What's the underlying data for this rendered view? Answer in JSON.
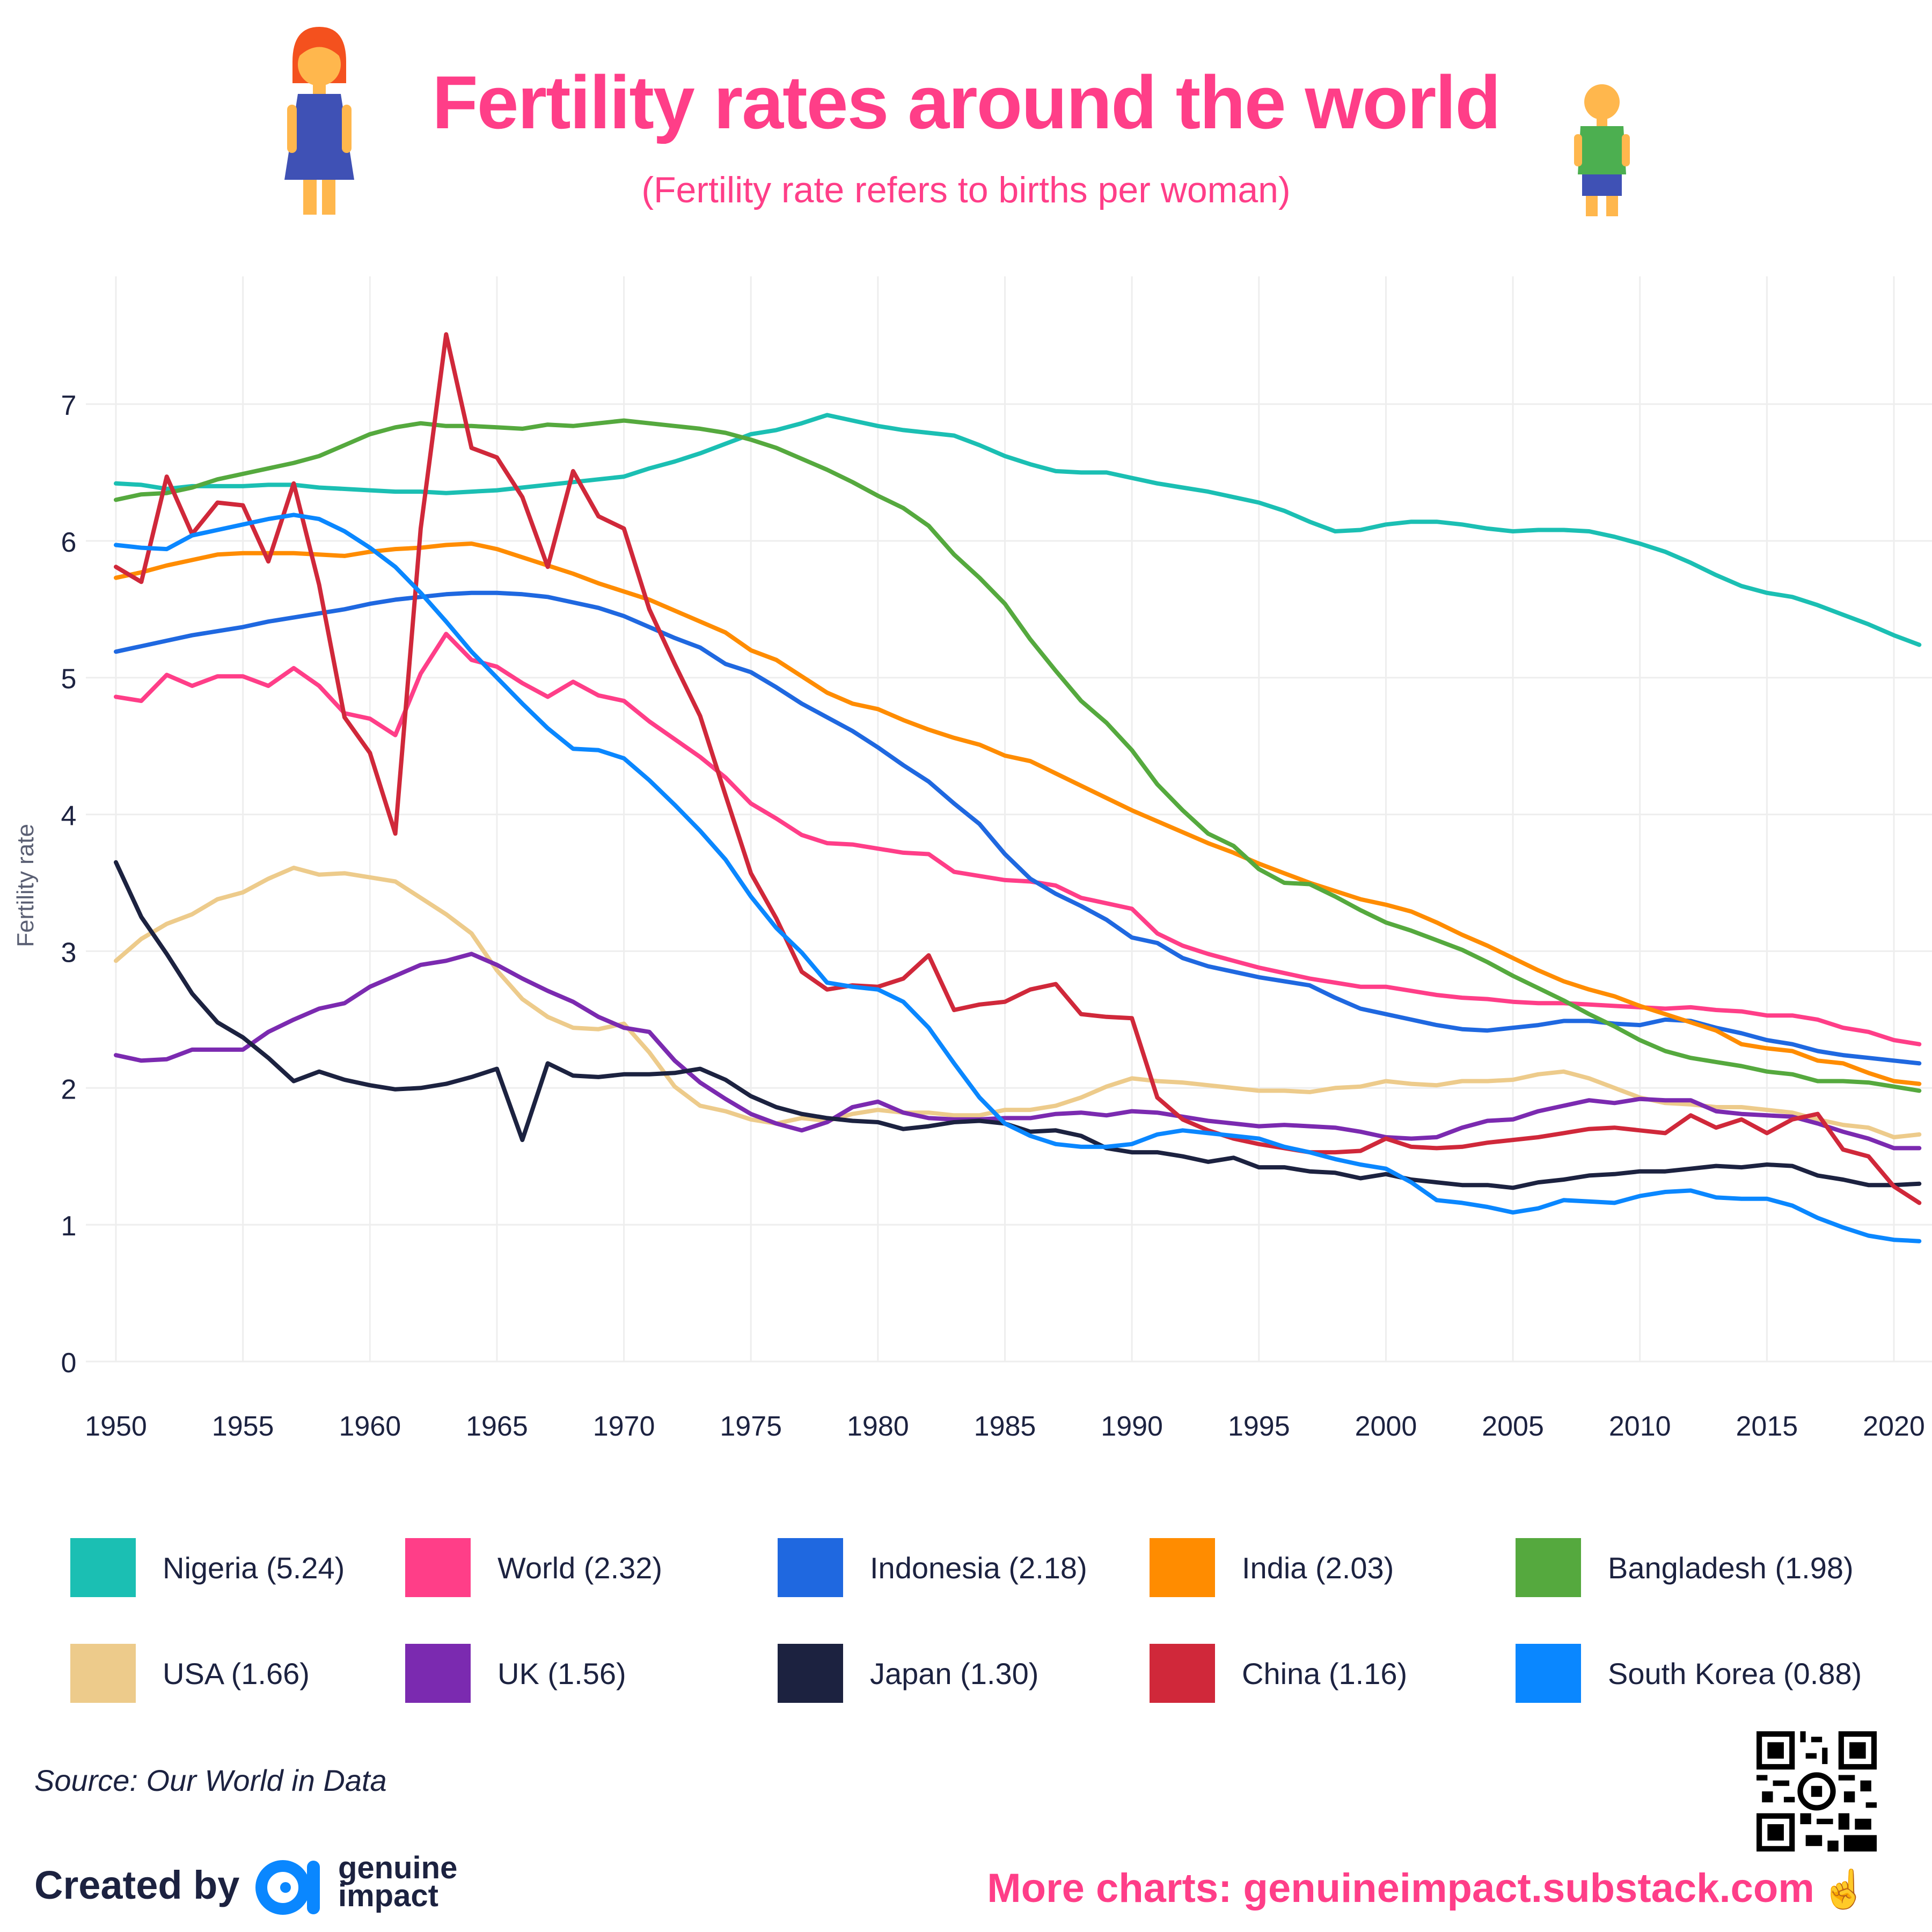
{
  "header": {
    "title": "Fertility rates around the world",
    "subtitle": "(Fertility rate refers to births per woman)",
    "left_icon": "woman-emoji-icon",
    "right_icon": "boy-emoji-icon"
  },
  "chart_data": {
    "type": "line",
    "title": "Fertility rates around the world",
    "subtitle": "(Fertility rate refers to births per woman)",
    "xlabel": "",
    "ylabel": "Fertility rate",
    "x_start": 1950,
    "x_end": 2021,
    "xlim": [
      1950,
      2021
    ],
    "ylim": [
      0,
      7.5
    ],
    "x_ticks": [
      "1950",
      "1955",
      "1960",
      "1965",
      "1970",
      "1975",
      "1980",
      "1985",
      "1990",
      "1995",
      "2000",
      "2005",
      "2010",
      "2015",
      "2020"
    ],
    "y_ticks": [
      "0",
      "1",
      "2",
      "3",
      "4",
      "5",
      "6",
      "7"
    ],
    "grid": true,
    "legend_placement": "bottom",
    "series": [
      {
        "name": "Nigeria",
        "legend": "Nigeria (5.24)",
        "color": "#1BBFB3",
        "values": [
          6.42,
          6.41,
          6.38,
          6.4,
          6.4,
          6.4,
          6.41,
          6.41,
          6.39,
          6.38,
          6.37,
          6.36,
          6.36,
          6.35,
          6.36,
          6.37,
          6.39,
          6.41,
          6.43,
          6.45,
          6.47,
          6.53,
          6.58,
          6.64,
          6.71,
          6.78,
          6.81,
          6.86,
          6.92,
          6.88,
          6.84,
          6.81,
          6.79,
          6.77,
          6.7,
          6.62,
          6.56,
          6.51,
          6.5,
          6.5,
          6.46,
          6.42,
          6.39,
          6.36,
          6.32,
          6.28,
          6.22,
          6.14,
          6.07,
          6.08,
          6.12,
          6.14,
          6.14,
          6.12,
          6.09,
          6.07,
          6.08,
          6.08,
          6.07,
          6.03,
          5.98,
          5.92,
          5.84,
          5.75,
          5.67,
          5.62,
          5.59,
          5.53,
          5.46,
          5.39,
          5.31,
          5.24
        ]
      },
      {
        "name": "World",
        "legend": "World (2.32)",
        "color": "#FF3E88",
        "values": [
          4.86,
          4.83,
          5.02,
          4.94,
          5.01,
          5.01,
          4.94,
          5.07,
          4.94,
          4.74,
          4.7,
          4.58,
          5.03,
          5.32,
          5.13,
          5.08,
          4.96,
          4.86,
          4.97,
          4.87,
          4.83,
          4.68,
          4.55,
          4.42,
          4.27,
          4.08,
          3.97,
          3.85,
          3.79,
          3.78,
          3.75,
          3.72,
          3.71,
          3.58,
          3.55,
          3.52,
          3.51,
          3.48,
          3.39,
          3.35,
          3.31,
          3.13,
          3.04,
          2.98,
          2.93,
          2.88,
          2.84,
          2.8,
          2.77,
          2.74,
          2.74,
          2.71,
          2.68,
          2.66,
          2.65,
          2.63,
          2.62,
          2.62,
          2.61,
          2.6,
          2.59,
          2.58,
          2.59,
          2.57,
          2.56,
          2.53,
          2.53,
          2.5,
          2.44,
          2.41,
          2.35,
          2.32
        ]
      },
      {
        "name": "Indonesia",
        "legend": "Indonesia (2.18)",
        "color": "#1F68E0",
        "values": [
          5.19,
          5.23,
          5.27,
          5.31,
          5.34,
          5.37,
          5.41,
          5.44,
          5.47,
          5.5,
          5.54,
          5.57,
          5.59,
          5.61,
          5.62,
          5.62,
          5.61,
          5.59,
          5.55,
          5.51,
          5.45,
          5.37,
          5.29,
          5.22,
          5.1,
          5.04,
          4.93,
          4.81,
          4.71,
          4.61,
          4.49,
          4.36,
          4.24,
          4.08,
          3.93,
          3.71,
          3.53,
          3.42,
          3.33,
          3.23,
          3.1,
          3.06,
          2.95,
          2.89,
          2.85,
          2.81,
          2.78,
          2.75,
          2.66,
          2.58,
          2.54,
          2.5,
          2.46,
          2.43,
          2.42,
          2.44,
          2.46,
          2.49,
          2.49,
          2.47,
          2.46,
          2.5,
          2.49,
          2.44,
          2.4,
          2.35,
          2.32,
          2.27,
          2.24,
          2.22,
          2.2,
          2.18
        ]
      },
      {
        "name": "India",
        "legend": "India (2.03)",
        "color": "#FF8C00",
        "values": [
          5.73,
          5.77,
          5.82,
          5.86,
          5.9,
          5.91,
          5.91,
          5.91,
          5.9,
          5.89,
          5.92,
          5.94,
          5.95,
          5.97,
          5.98,
          5.94,
          5.88,
          5.82,
          5.76,
          5.69,
          5.63,
          5.57,
          5.49,
          5.41,
          5.33,
          5.2,
          5.13,
          5.01,
          4.89,
          4.81,
          4.77,
          4.69,
          4.62,
          4.56,
          4.51,
          4.43,
          4.39,
          4.3,
          4.21,
          4.12,
          4.03,
          3.95,
          3.87,
          3.79,
          3.72,
          3.64,
          3.57,
          3.5,
          3.44,
          3.38,
          3.34,
          3.29,
          3.21,
          3.12,
          3.04,
          2.95,
          2.86,
          2.78,
          2.72,
          2.67,
          2.6,
          2.54,
          2.48,
          2.42,
          2.32,
          2.29,
          2.27,
          2.2,
          2.18,
          2.11,
          2.05,
          2.03
        ]
      },
      {
        "name": "Bangladesh",
        "legend": "Bangladesh (1.98)",
        "color": "#55A93E",
        "values": [
          6.3,
          6.34,
          6.35,
          6.39,
          6.45,
          6.49,
          6.53,
          6.57,
          6.62,
          6.7,
          6.78,
          6.83,
          6.86,
          6.84,
          6.84,
          6.83,
          6.82,
          6.85,
          6.84,
          6.86,
          6.88,
          6.86,
          6.84,
          6.82,
          6.79,
          6.74,
          6.68,
          6.6,
          6.52,
          6.43,
          6.33,
          6.24,
          6.11,
          5.9,
          5.73,
          5.54,
          5.28,
          5.05,
          4.83,
          4.67,
          4.47,
          4.22,
          4.03,
          3.86,
          3.77,
          3.6,
          3.5,
          3.49,
          3.4,
          3.3,
          3.21,
          3.15,
          3.08,
          3.01,
          2.92,
          2.82,
          2.73,
          2.64,
          2.54,
          2.45,
          2.35,
          2.27,
          2.22,
          2.19,
          2.16,
          2.12,
          2.1,
          2.05,
          2.05,
          2.04,
          2.01,
          1.98
        ]
      },
      {
        "name": "USA",
        "legend": "USA (1.66)",
        "color": "#EDCB8B",
        "values": [
          2.93,
          3.09,
          3.2,
          3.27,
          3.38,
          3.43,
          3.53,
          3.61,
          3.56,
          3.57,
          3.54,
          3.51,
          3.39,
          3.27,
          3.13,
          2.86,
          2.65,
          2.52,
          2.44,
          2.43,
          2.47,
          2.26,
          2.01,
          1.87,
          1.83,
          1.77,
          1.74,
          1.78,
          1.76,
          1.81,
          1.84,
          1.82,
          1.82,
          1.8,
          1.8,
          1.84,
          1.84,
          1.87,
          1.93,
          2.01,
          2.07,
          2.05,
          2.04,
          2.02,
          2.0,
          1.98,
          1.98,
          1.97,
          2.0,
          2.01,
          2.05,
          2.03,
          2.02,
          2.05,
          2.05,
          2.06,
          2.1,
          2.12,
          2.07,
          2.0,
          1.93,
          1.89,
          1.88,
          1.86,
          1.86,
          1.84,
          1.82,
          1.77,
          1.73,
          1.71,
          1.64,
          1.66
        ]
      },
      {
        "name": "UK",
        "legend": "UK (1.56)",
        "color": "#7B2AB0",
        "values": [
          2.24,
          2.2,
          2.21,
          2.28,
          2.28,
          2.28,
          2.41,
          2.5,
          2.58,
          2.62,
          2.74,
          2.82,
          2.9,
          2.93,
          2.98,
          2.9,
          2.8,
          2.71,
          2.63,
          2.52,
          2.44,
          2.41,
          2.2,
          2.04,
          1.92,
          1.81,
          1.74,
          1.69,
          1.75,
          1.86,
          1.9,
          1.82,
          1.78,
          1.77,
          1.77,
          1.78,
          1.78,
          1.81,
          1.82,
          1.8,
          1.83,
          1.82,
          1.79,
          1.76,
          1.74,
          1.72,
          1.73,
          1.72,
          1.71,
          1.68,
          1.64,
          1.63,
          1.64,
          1.71,
          1.76,
          1.77,
          1.83,
          1.87,
          1.91,
          1.89,
          1.92,
          1.91,
          1.91,
          1.83,
          1.81,
          1.8,
          1.79,
          1.74,
          1.68,
          1.63,
          1.56,
          1.56
        ]
      },
      {
        "name": "Japan",
        "legend": "Japan (1.30)",
        "color": "#1C2240",
        "values": [
          3.65,
          3.25,
          2.98,
          2.69,
          2.48,
          2.37,
          2.22,
          2.05,
          2.12,
          2.06,
          2.02,
          1.99,
          2.0,
          2.03,
          2.08,
          2.14,
          1.62,
          2.18,
          2.09,
          2.08,
          2.1,
          2.1,
          2.11,
          2.14,
          2.06,
          1.94,
          1.86,
          1.81,
          1.78,
          1.76,
          1.75,
          1.7,
          1.72,
          1.75,
          1.76,
          1.74,
          1.68,
          1.69,
          1.65,
          1.56,
          1.53,
          1.53,
          1.5,
          1.46,
          1.49,
          1.42,
          1.42,
          1.39,
          1.38,
          1.34,
          1.37,
          1.33,
          1.31,
          1.29,
          1.29,
          1.27,
          1.31,
          1.33,
          1.36,
          1.37,
          1.39,
          1.39,
          1.41,
          1.43,
          1.42,
          1.44,
          1.43,
          1.36,
          1.33,
          1.29,
          1.29,
          1.3
        ]
      },
      {
        "name": "China",
        "legend": "China (1.16)",
        "color": "#D0283A",
        "values": [
          5.81,
          5.7,
          6.47,
          6.05,
          6.28,
          6.26,
          5.85,
          6.42,
          5.68,
          4.71,
          4.45,
          3.86,
          6.09,
          7.51,
          6.68,
          6.61,
          6.32,
          5.81,
          6.51,
          6.18,
          6.09,
          5.5,
          5.1,
          4.72,
          4.14,
          3.57,
          3.24,
          2.85,
          2.72,
          2.75,
          2.74,
          2.8,
          2.97,
          2.57,
          2.61,
          2.63,
          2.72,
          2.76,
          2.54,
          2.52,
          2.51,
          1.93,
          1.77,
          1.69,
          1.63,
          1.59,
          1.56,
          1.53,
          1.53,
          1.54,
          1.63,
          1.57,
          1.56,
          1.57,
          1.6,
          1.62,
          1.64,
          1.67,
          1.7,
          1.71,
          1.69,
          1.67,
          1.8,
          1.71,
          1.77,
          1.67,
          1.77,
          1.81,
          1.55,
          1.5,
          1.28,
          1.16
        ]
      },
      {
        "name": "South Korea",
        "legend": "South Korea (0.88)",
        "color": "#0A87FF",
        "values": [
          5.97,
          5.95,
          5.94,
          6.04,
          6.08,
          6.12,
          6.16,
          6.19,
          6.16,
          6.07,
          5.95,
          5.81,
          5.62,
          5.41,
          5.19,
          5.0,
          4.81,
          4.63,
          4.48,
          4.47,
          4.41,
          4.25,
          4.07,
          3.88,
          3.67,
          3.4,
          3.17,
          2.99,
          2.77,
          2.74,
          2.72,
          2.63,
          2.44,
          2.18,
          1.93,
          1.74,
          1.65,
          1.59,
          1.57,
          1.57,
          1.59,
          1.66,
          1.69,
          1.67,
          1.65,
          1.63,
          1.57,
          1.53,
          1.48,
          1.44,
          1.41,
          1.31,
          1.18,
          1.16,
          1.13,
          1.09,
          1.12,
          1.18,
          1.17,
          1.16,
          1.21,
          1.24,
          1.25,
          1.2,
          1.19,
          1.19,
          1.14,
          1.05,
          0.98,
          0.92,
          0.89,
          0.88
        ]
      }
    ]
  },
  "footer": {
    "source": "Source: Our World in Data",
    "created_by": "Created by",
    "brand_line1": "genuine",
    "brand_line2": "impact",
    "more_charts": "More charts: genuineimpact.substack.com",
    "pointing_icon": "pointing-up-emoji-icon",
    "qr_icon": "qr-code-icon"
  }
}
